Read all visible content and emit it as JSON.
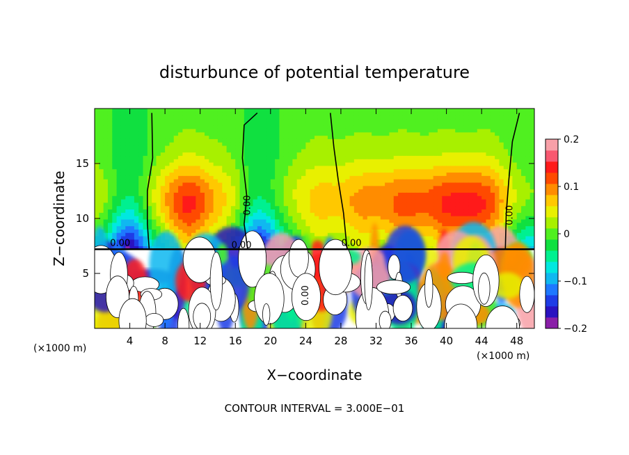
{
  "chart_data": {
    "type": "heatmap",
    "title": "disturbunce of potential temperature",
    "xlabel": "X−coordinate",
    "ylabel": "Z−coordinate",
    "x_unit_left": "(×1000 m)",
    "x_unit_right": "(×1000 m)",
    "xlim": [
      0,
      50
    ],
    "ylim": [
      0,
      20
    ],
    "x_ticks": [
      4,
      8,
      12,
      16,
      20,
      24,
      28,
      32,
      36,
      40,
      44,
      48
    ],
    "x_tick_labels": [
      "4",
      "8",
      "12",
      "16",
      "20",
      "24",
      "28",
      "32",
      "36",
      "40",
      "44",
      "48"
    ],
    "y_ticks": [
      5,
      10,
      15
    ],
    "y_tick_labels": [
      "5",
      "10",
      "15"
    ],
    "colorbar": {
      "range": [
        -0.2,
        0.2
      ],
      "ticks": [
        0.2,
        0.1,
        0,
        -0.1,
        -0.2
      ],
      "tick_labels": [
        "0.2",
        "0.1",
        "0",
        "−0.1",
        "−0.2"
      ],
      "colors": [
        "#8a1fa8",
        "#2a12c0",
        "#1e3ce6",
        "#1e78ff",
        "#10b8f0",
        "#00e8e0",
        "#00f090",
        "#10e040",
        "#50f020",
        "#a8f000",
        "#e8f000",
        "#ffc800",
        "#ff8c00",
        "#ff4a00",
        "#ff1a1a",
        "#f85870",
        "#f8a0a8"
      ]
    },
    "contour_labels": [
      "0.00",
      "0.00",
      "0.00",
      "0.00",
      "0.00",
      "0.00"
    ],
    "footer": "CONTOUR INTERVAL = 3.000E−01",
    "interface_height": 7.2,
    "ridges": [
      {
        "x": 4,
        "width": 3.2,
        "strength": -0.19
      },
      {
        "x": 10.5,
        "width": 3.5,
        "strength": 0.08
      },
      {
        "x": 19,
        "width": 3.0,
        "strength": -0.19
      },
      {
        "x": 37,
        "width": 9.0,
        "strength": 0.06
      },
      {
        "x": 43,
        "width": 3.5,
        "strength": 0.05
      },
      {
        "x": 49.5,
        "width": 2.5,
        "strength": -0.12
      }
    ],
    "zero_contours": [
      [
        [
          6.2,
          7.2
        ],
        [
          6.0,
          9.5
        ],
        [
          6.0,
          12.5
        ],
        [
          6.6,
          15.5
        ],
        [
          6.5,
          19.6
        ]
      ],
      [
        [
          18.5,
          19.6
        ],
        [
          17.0,
          18.5
        ],
        [
          16.8,
          15.5
        ],
        [
          17.3,
          12.0
        ],
        [
          17.0,
          9.5
        ],
        [
          17.4,
          7.2
        ]
      ],
      [
        [
          28.7,
          7.2
        ],
        [
          28.3,
          10.5
        ],
        [
          27.7,
          13.5
        ],
        [
          27.2,
          16.5
        ],
        [
          26.8,
          19.6
        ]
      ],
      [
        [
          46.7,
          7.2
        ],
        [
          46.8,
          10.5
        ],
        [
          47.1,
          13.5
        ],
        [
          47.5,
          17.0
        ],
        [
          48.3,
          19.6
        ]
      ]
    ]
  }
}
